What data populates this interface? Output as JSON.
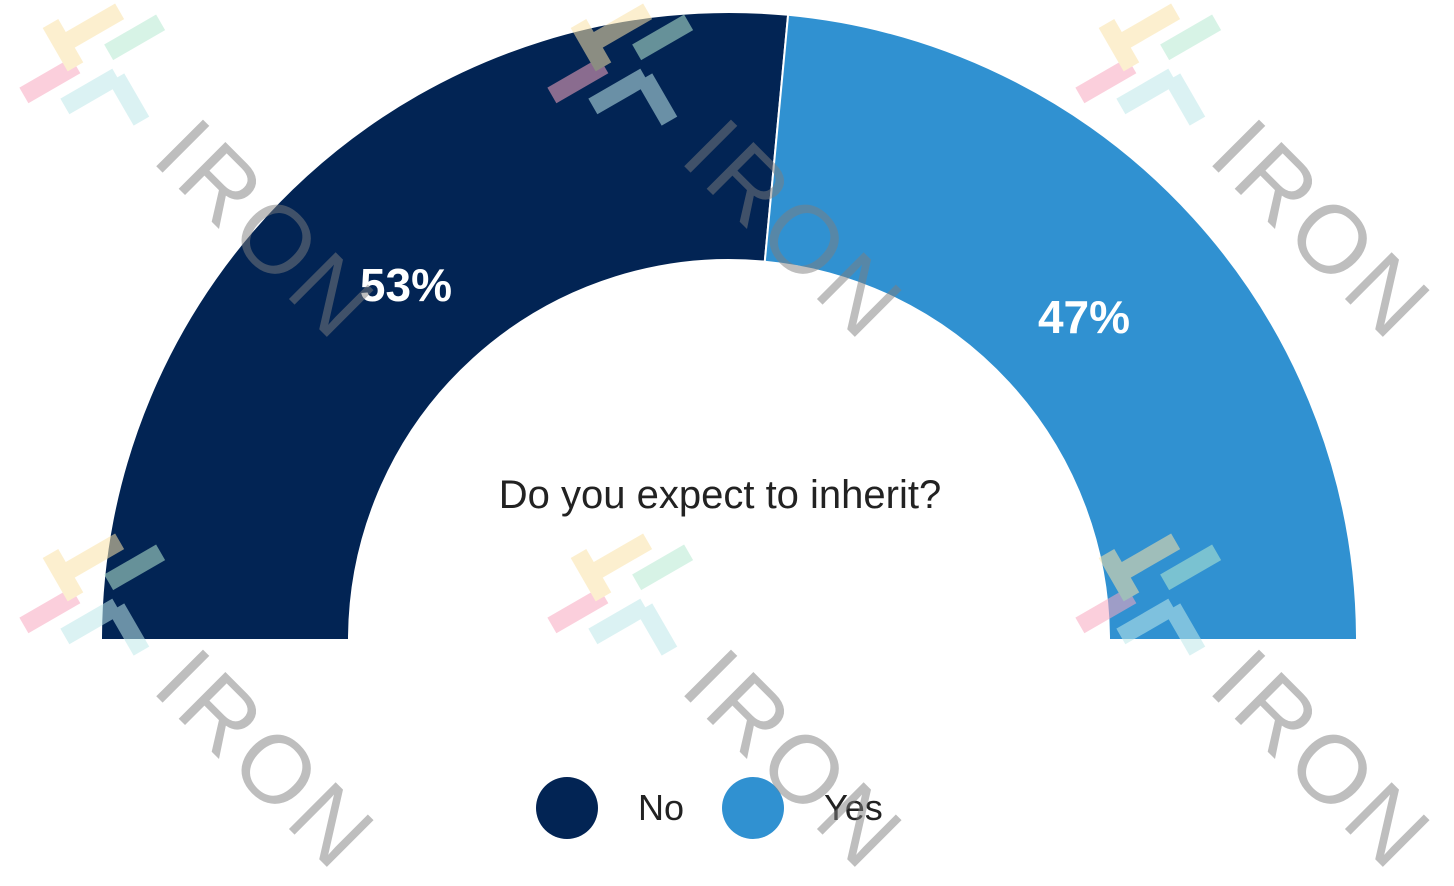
{
  "chart_data": {
    "type": "pie",
    "variant": "half-donut",
    "title": "Do you expect to inherit?",
    "slices": [
      {
        "label": "No",
        "value": 53,
        "display": "53%",
        "color": "#022454"
      },
      {
        "label": "Yes",
        "value": 47,
        "display": "47%",
        "color": "#3091d1"
      }
    ],
    "legend": {
      "placement": "bottom-center",
      "items": [
        "No",
        "Yes"
      ]
    }
  },
  "watermark": {
    "text": "IRON",
    "logo_colors": [
      "#f9a8c0",
      "#fbe3a8",
      "#bfe9ea",
      "#b8ead2"
    ]
  }
}
